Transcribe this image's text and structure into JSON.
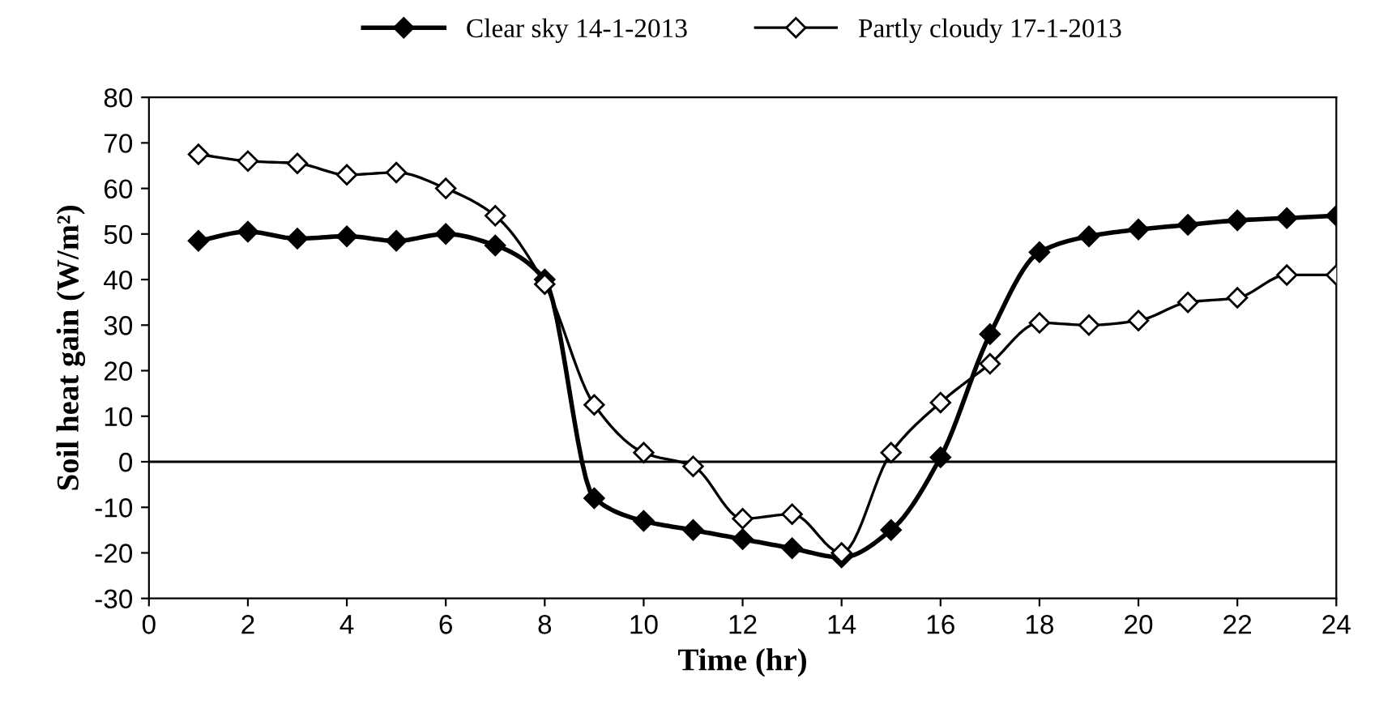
{
  "chart_data": {
    "type": "line",
    "xlabel": "Time (hr)",
    "ylabel": "Soil heat gain (W/m²)",
    "x": [
      1,
      2,
      3,
      4,
      5,
      6,
      7,
      8,
      9,
      10,
      11,
      12,
      13,
      14,
      15,
      16,
      17,
      18,
      19,
      20,
      21,
      22,
      23,
      24
    ],
    "series": [
      {
        "name": "Clear sky 14-1-2013",
        "color": "#000000",
        "values": [
          48.5,
          50.5,
          49,
          49.5,
          48.5,
          50,
          47.5,
          40,
          -8,
          -13,
          -15,
          -17,
          -19,
          -21,
          -15,
          1,
          28,
          46,
          49.5,
          51,
          52,
          53,
          53.5,
          54
        ]
      },
      {
        "name": "Partly cloudy 17-1-2013",
        "color": "#000000",
        "values": [
          67.5,
          66,
          65.5,
          63,
          63.5,
          60,
          54,
          39,
          12.5,
          2,
          -1,
          -12.5,
          -11.5,
          -20,
          2,
          13,
          21.5,
          30.5,
          30,
          31,
          35,
          36,
          41,
          41
        ]
      }
    ],
    "xlim": [
      0,
      24
    ],
    "xticks": [
      0,
      2,
      4,
      6,
      8,
      10,
      12,
      14,
      16,
      18,
      20,
      22,
      24
    ],
    "ylim": [
      -30,
      80
    ],
    "yticks": [
      -30,
      -20,
      -10,
      0,
      10,
      20,
      30,
      40,
      50,
      60,
      70,
      80
    ],
    "ref_lines": [
      {
        "axis": "y",
        "value": 0,
        "color": "#000000"
      }
    ],
    "marker": "diamond",
    "line_style": "solid",
    "legend": "top",
    "grid": false
  }
}
